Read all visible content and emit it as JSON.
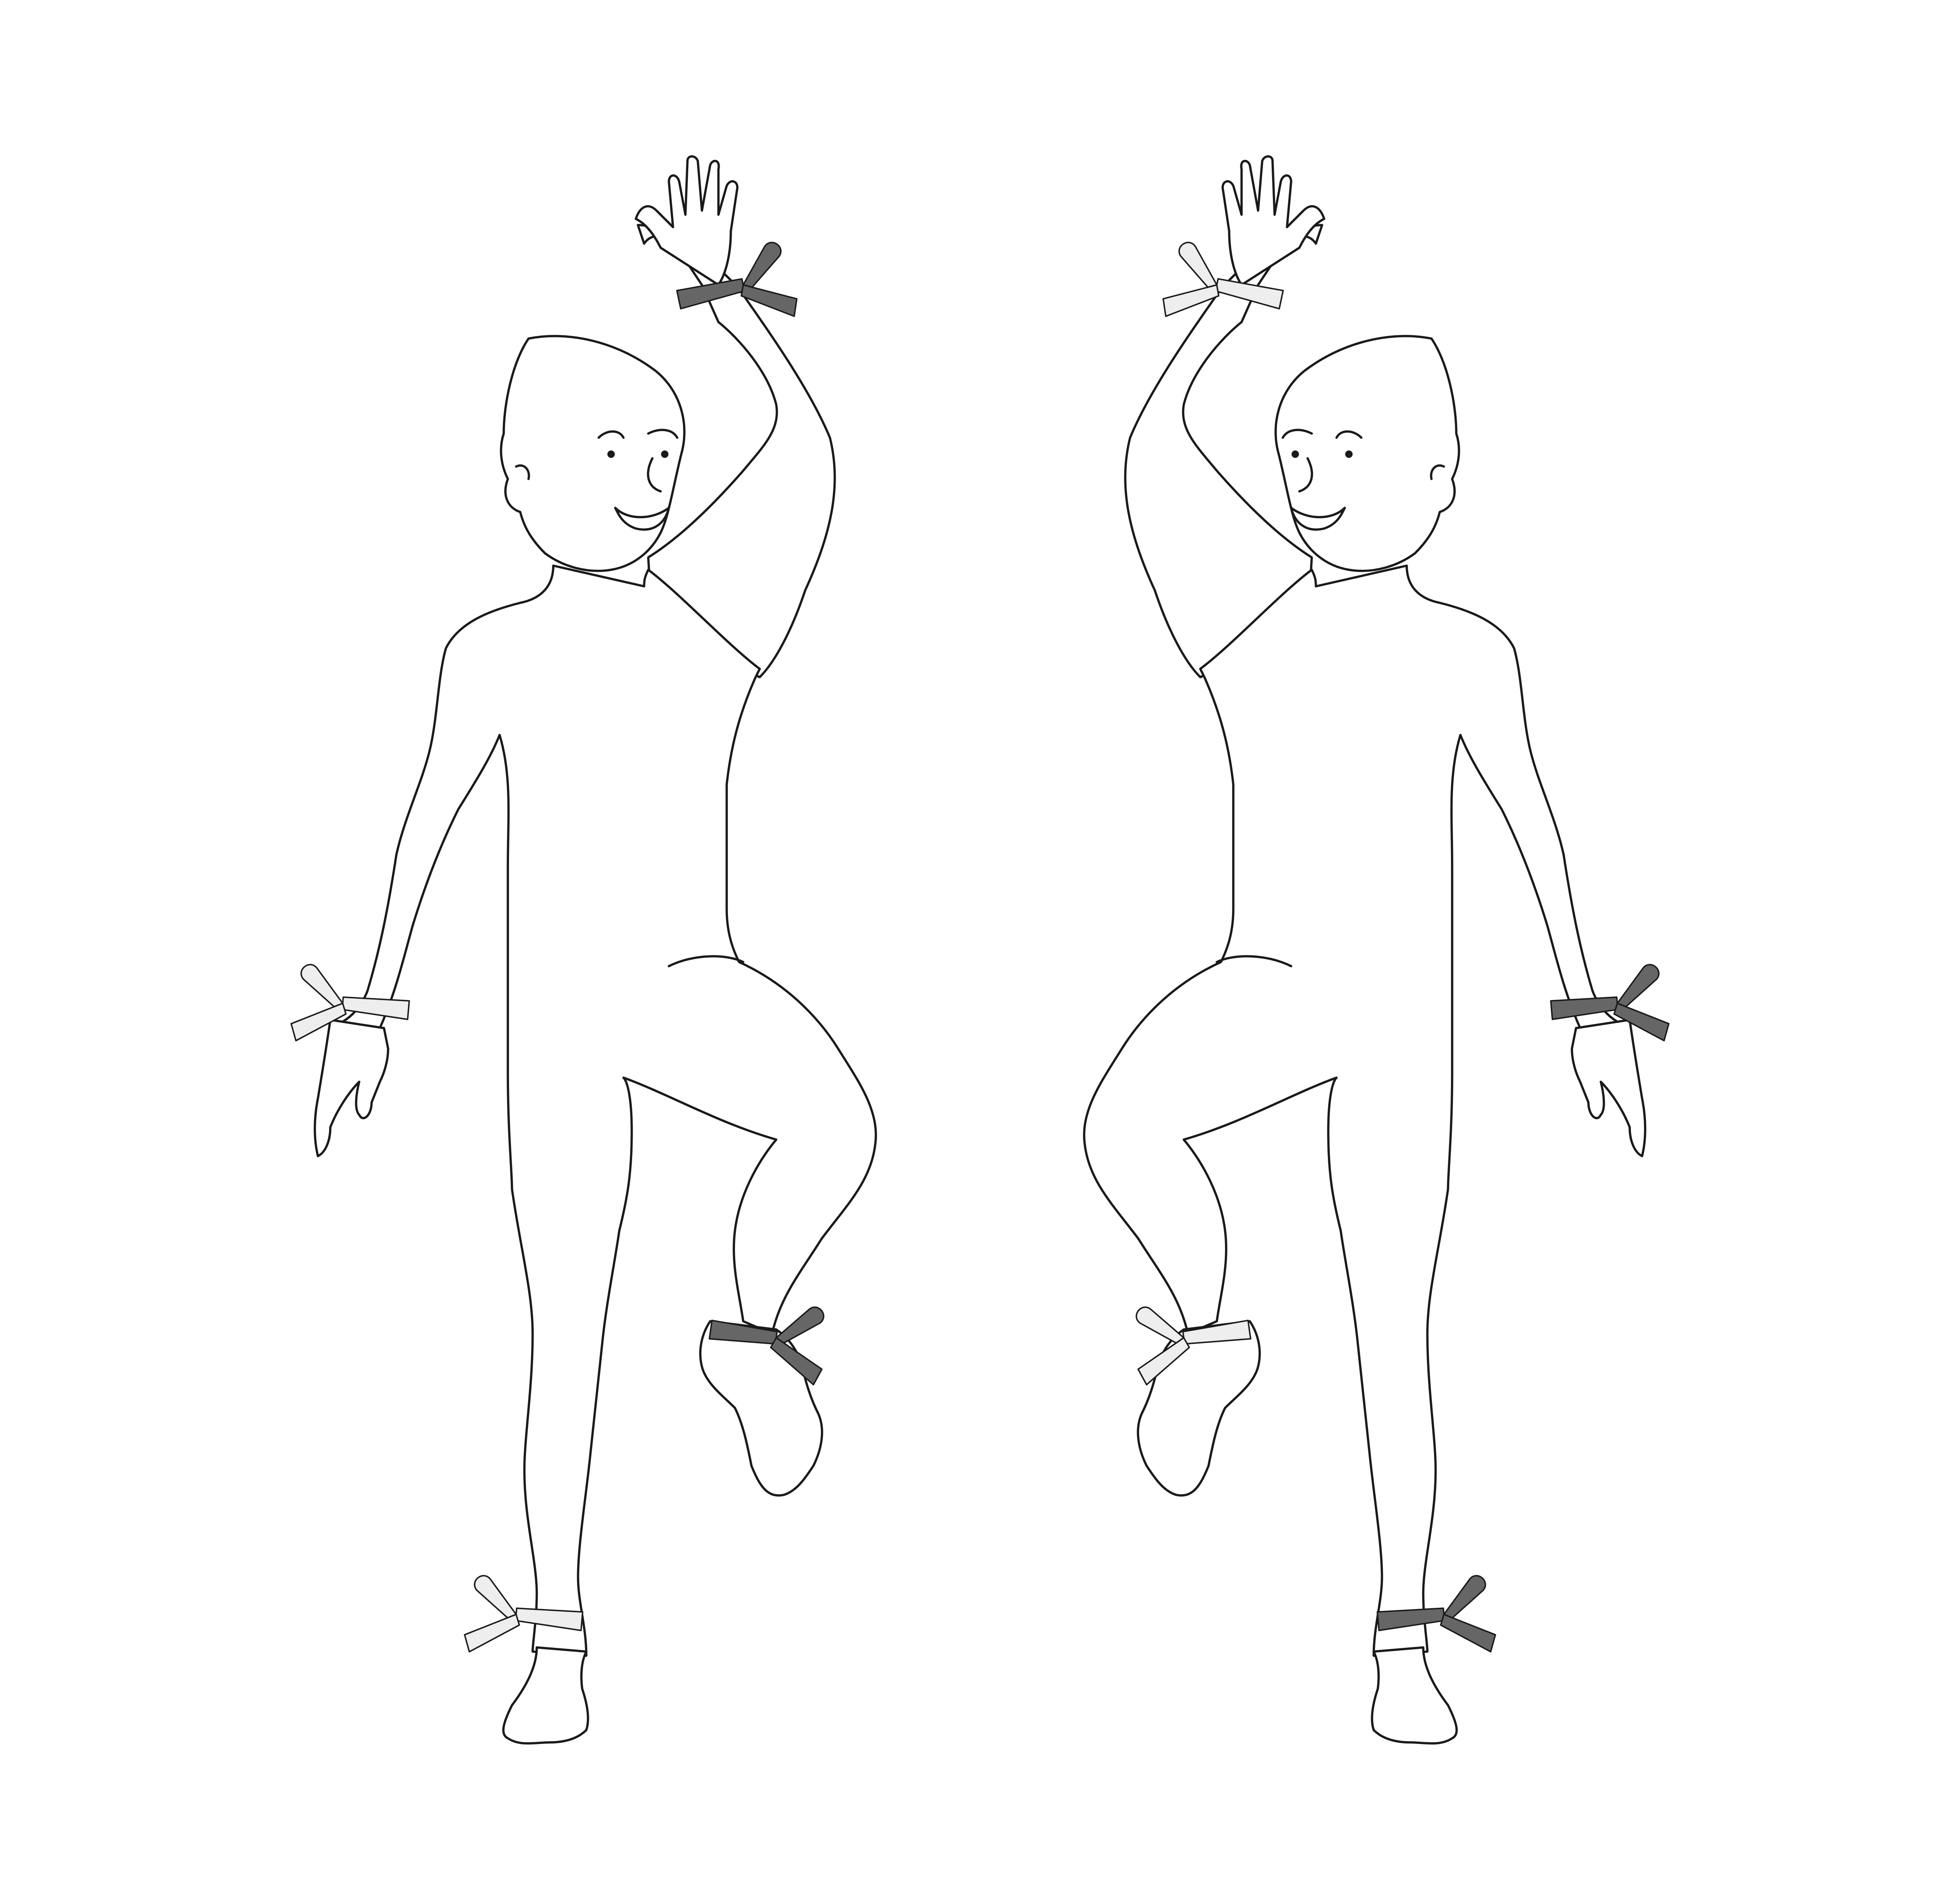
{
  "illustration": {
    "figures": [
      {
        "id": "left",
        "ribbons": {
          "raised_wrist": "dark",
          "lowered_wrist": "light",
          "raised_ankle": "dark",
          "standing_ankle": "light"
        }
      },
      {
        "id": "right",
        "ribbons": {
          "raised_wrist": "light",
          "lowered_wrist": "dark",
          "raised_ankle": "light",
          "standing_ankle": "dark"
        }
      }
    ],
    "ribbon_colors": {
      "dark": "#666666",
      "light": "#eeeeee"
    },
    "outline_color": "#1a1a1a",
    "background_color": "#ffffff"
  }
}
